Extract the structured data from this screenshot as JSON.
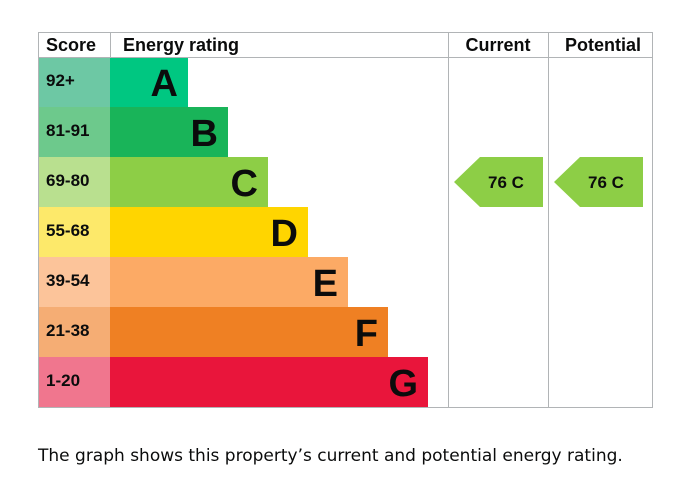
{
  "chart_data": {
    "type": "bar",
    "headers": {
      "score": "Score",
      "rating": "Energy rating",
      "current": "Current",
      "potential": "Potential"
    },
    "bands": [
      {
        "score": "92+",
        "letter": "A",
        "score_color": "#6dc8a4",
        "bar_color": "#00c781"
      },
      {
        "score": "81-91",
        "letter": "B",
        "score_color": "#6dc98c",
        "bar_color": "#19b459"
      },
      {
        "score": "69-80",
        "letter": "C",
        "score_color": "#b9e08f",
        "bar_color": "#8dce46"
      },
      {
        "score": "55-68",
        "letter": "D",
        "score_color": "#fde96a",
        "bar_color": "#ffd500"
      },
      {
        "score": "39-54",
        "letter": "E",
        "score_color": "#fcc49a",
        "bar_color": "#fcaa65"
      },
      {
        "score": "21-38",
        "letter": "F",
        "score_color": "#f5ad74",
        "bar_color": "#ef8023"
      },
      {
        "score": "1-20",
        "letter": "G",
        "score_color": "#f0768e",
        "bar_color": "#e9153b"
      }
    ],
    "current": {
      "value": 76,
      "rating": "C",
      "label": "76  C",
      "color": "#8dce46"
    },
    "potential": {
      "value": 76,
      "rating": "C",
      "label": "76  C",
      "color": "#8dce46"
    }
  },
  "caption": "The graph shows this property’s current and potential energy rating."
}
